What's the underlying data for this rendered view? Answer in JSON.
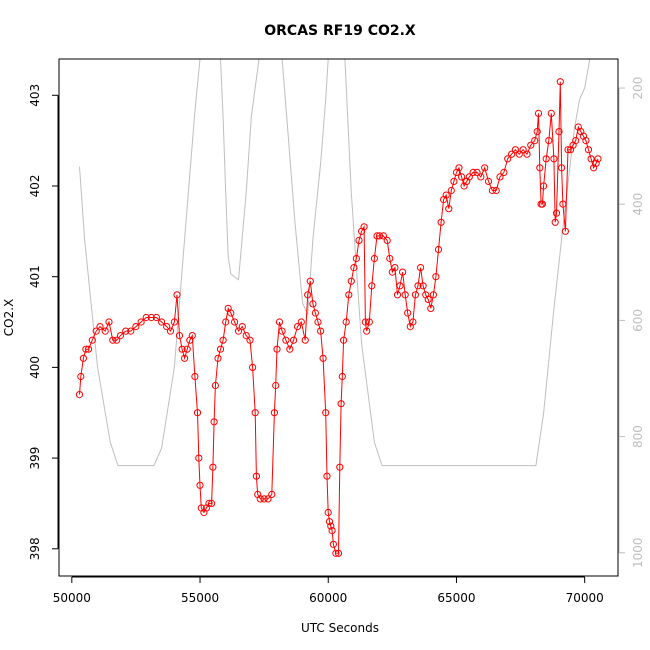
{
  "chart_data": {
    "type": "scatter",
    "title": "ORCAS RF19 CO2.X",
    "xlabel": "UTC Seconds",
    "ylabel": "CO2.X",
    "xlim": [
      49500,
      71300
    ],
    "ylim": [
      397.7,
      403.4
    ],
    "right_axis_lim": [
      1040,
      150
    ],
    "right_axis_reversed": true,
    "x_ticks": [
      50000,
      55000,
      60000,
      65000,
      70000
    ],
    "y_ticks": [
      398,
      399,
      400,
      401,
      402,
      403
    ],
    "right_ticks": [
      200,
      400,
      600,
      800,
      1000
    ],
    "grid": false,
    "colors": {
      "series": "#ff0000",
      "secondary": "#bebebe",
      "axis": "#000000"
    },
    "series": [
      {
        "marker": "open-circle",
        "color": "#ff0000",
        "points": [
          [
            50300,
            399.7
          ],
          [
            50350,
            399.9
          ],
          [
            50450,
            400.1
          ],
          [
            50550,
            400.2
          ],
          [
            50650,
            400.2
          ],
          [
            50800,
            400.3
          ],
          [
            50950,
            400.4
          ],
          [
            51100,
            400.45
          ],
          [
            51300,
            400.4
          ],
          [
            51450,
            400.5
          ],
          [
            51600,
            400.3
          ],
          [
            51750,
            400.3
          ],
          [
            51900,
            400.35
          ],
          [
            52100,
            400.4
          ],
          [
            52300,
            400.4
          ],
          [
            52500,
            400.45
          ],
          [
            52700,
            400.5
          ],
          [
            52900,
            400.55
          ],
          [
            53100,
            400.55
          ],
          [
            53300,
            400.55
          ],
          [
            53500,
            400.5
          ],
          [
            53700,
            400.45
          ],
          [
            53850,
            400.4
          ],
          [
            54000,
            400.5
          ],
          [
            54100,
            400.8
          ],
          [
            54200,
            400.35
          ],
          [
            54300,
            400.2
          ],
          [
            54400,
            400.1
          ],
          [
            54500,
            400.2
          ],
          [
            54600,
            400.3
          ],
          [
            54700,
            400.35
          ],
          [
            54800,
            399.9
          ],
          [
            54900,
            399.5
          ],
          [
            54950,
            399.0
          ],
          [
            55000,
            398.7
          ],
          [
            55050,
            398.45
          ],
          [
            55150,
            398.4
          ],
          [
            55250,
            398.45
          ],
          [
            55350,
            398.5
          ],
          [
            55450,
            398.5
          ],
          [
            55500,
            398.9
          ],
          [
            55550,
            399.4
          ],
          [
            55600,
            399.8
          ],
          [
            55700,
            400.1
          ],
          [
            55800,
            400.2
          ],
          [
            55900,
            400.3
          ],
          [
            56000,
            400.5
          ],
          [
            56100,
            400.65
          ],
          [
            56200,
            400.6
          ],
          [
            56350,
            400.5
          ],
          [
            56500,
            400.4
          ],
          [
            56650,
            400.45
          ],
          [
            56800,
            400.35
          ],
          [
            56950,
            400.3
          ],
          [
            57050,
            400.0
          ],
          [
            57150,
            399.5
          ],
          [
            57200,
            398.8
          ],
          [
            57250,
            398.6
          ],
          [
            57350,
            398.55
          ],
          [
            57500,
            398.55
          ],
          [
            57650,
            398.55
          ],
          [
            57800,
            398.6
          ],
          [
            57900,
            399.5
          ],
          [
            57950,
            399.8
          ],
          [
            58000,
            400.2
          ],
          [
            58100,
            400.5
          ],
          [
            58200,
            400.4
          ],
          [
            58350,
            400.3
          ],
          [
            58500,
            400.2
          ],
          [
            58650,
            400.3
          ],
          [
            58800,
            400.45
          ],
          [
            58950,
            400.5
          ],
          [
            59100,
            400.3
          ],
          [
            59200,
            400.8
          ],
          [
            59300,
            400.95
          ],
          [
            59400,
            400.7
          ],
          [
            59500,
            400.6
          ],
          [
            59600,
            400.5
          ],
          [
            59700,
            400.4
          ],
          [
            59800,
            400.1
          ],
          [
            59900,
            399.5
          ],
          [
            59950,
            398.8
          ],
          [
            60000,
            398.4
          ],
          [
            60050,
            398.3
          ],
          [
            60100,
            398.25
          ],
          [
            60150,
            398.2
          ],
          [
            60200,
            398.05
          ],
          [
            60300,
            397.95
          ],
          [
            60400,
            397.95
          ],
          [
            60450,
            398.9
          ],
          [
            60500,
            399.6
          ],
          [
            60550,
            399.9
          ],
          [
            60600,
            400.3
          ],
          [
            60700,
            400.5
          ],
          [
            60800,
            400.8
          ],
          [
            60900,
            400.95
          ],
          [
            61000,
            401.1
          ],
          [
            61100,
            401.2
          ],
          [
            61200,
            401.4
          ],
          [
            61300,
            401.5
          ],
          [
            61400,
            401.55
          ],
          [
            61450,
            400.5
          ],
          [
            61500,
            400.4
          ],
          [
            61600,
            400.5
          ],
          [
            61700,
            400.9
          ],
          [
            61800,
            401.2
          ],
          [
            61900,
            401.45
          ],
          [
            62000,
            401.45
          ],
          [
            62150,
            401.45
          ],
          [
            62300,
            401.4
          ],
          [
            62400,
            401.2
          ],
          [
            62500,
            401.05
          ],
          [
            62600,
            401.1
          ],
          [
            62700,
            400.8
          ],
          [
            62800,
            400.9
          ],
          [
            62900,
            401.05
          ],
          [
            63000,
            400.8
          ],
          [
            63100,
            400.6
          ],
          [
            63200,
            400.45
          ],
          [
            63300,
            400.5
          ],
          [
            63400,
            400.8
          ],
          [
            63500,
            400.9
          ],
          [
            63600,
            401.1
          ],
          [
            63700,
            400.9
          ],
          [
            63800,
            400.8
          ],
          [
            63900,
            400.75
          ],
          [
            64000,
            400.65
          ],
          [
            64100,
            400.8
          ],
          [
            64200,
            401.0
          ],
          [
            64300,
            401.3
          ],
          [
            64400,
            401.6
          ],
          [
            64500,
            401.85
          ],
          [
            64600,
            401.9
          ],
          [
            64700,
            401.75
          ],
          [
            64800,
            401.95
          ],
          [
            64900,
            402.05
          ],
          [
            65000,
            402.15
          ],
          [
            65100,
            402.2
          ],
          [
            65200,
            402.1
          ],
          [
            65300,
            402.0
          ],
          [
            65400,
            402.05
          ],
          [
            65500,
            402.1
          ],
          [
            65650,
            402.15
          ],
          [
            65800,
            402.15
          ],
          [
            65950,
            402.1
          ],
          [
            66100,
            402.2
          ],
          [
            66250,
            402.05
          ],
          [
            66400,
            401.95
          ],
          [
            66550,
            401.95
          ],
          [
            66700,
            402.1
          ],
          [
            66850,
            402.15
          ],
          [
            67000,
            402.3
          ],
          [
            67150,
            402.35
          ],
          [
            67300,
            402.4
          ],
          [
            67450,
            402.35
          ],
          [
            67600,
            402.4
          ],
          [
            67750,
            402.35
          ],
          [
            67900,
            402.45
          ],
          [
            68050,
            402.5
          ],
          [
            68150,
            402.6
          ],
          [
            68200,
            402.8
          ],
          [
            68250,
            402.2
          ],
          [
            68300,
            401.8
          ],
          [
            68350,
            401.8
          ],
          [
            68400,
            402.0
          ],
          [
            68500,
            402.3
          ],
          [
            68600,
            402.5
          ],
          [
            68700,
            402.8
          ],
          [
            68800,
            402.3
          ],
          [
            68850,
            401.6
          ],
          [
            68900,
            401.7
          ],
          [
            69000,
            402.6
          ],
          [
            69050,
            403.15
          ],
          [
            69100,
            402.2
          ],
          [
            69150,
            401.8
          ],
          [
            69250,
            401.5
          ],
          [
            69350,
            402.4
          ],
          [
            69450,
            402.4
          ],
          [
            69550,
            402.45
          ],
          [
            69650,
            402.5
          ],
          [
            69750,
            402.65
          ],
          [
            69850,
            402.6
          ],
          [
            69950,
            402.55
          ],
          [
            70050,
            402.5
          ],
          [
            70150,
            402.4
          ],
          [
            70250,
            402.3
          ],
          [
            70350,
            402.2
          ],
          [
            70450,
            402.25
          ],
          [
            70520,
            402.3
          ]
        ]
      },
      {
        "role": "secondary-axis-line",
        "color": "#bebebe",
        "points": [
          [
            50300,
            335
          ],
          [
            50500,
            460
          ],
          [
            51000,
            680
          ],
          [
            51500,
            810
          ],
          [
            51800,
            850
          ],
          [
            53200,
            850
          ],
          [
            53500,
            820
          ],
          [
            54000,
            680
          ],
          [
            54400,
            460
          ],
          [
            54800,
            240
          ],
          [
            55000,
            150
          ],
          [
            55800,
            150
          ],
          [
            55900,
            250
          ],
          [
            56000,
            380
          ],
          [
            56100,
            490
          ],
          [
            56200,
            520
          ],
          [
            56500,
            530
          ],
          [
            56800,
            380
          ],
          [
            57000,
            250
          ],
          [
            57300,
            150
          ],
          [
            58200,
            150
          ],
          [
            58400,
            260
          ],
          [
            58700,
            430
          ],
          [
            59000,
            570
          ],
          [
            59200,
            590
          ],
          [
            59400,
            460
          ],
          [
            59700,
            330
          ],
          [
            59900,
            220
          ],
          [
            60000,
            150
          ],
          [
            60650,
            150
          ],
          [
            60900,
            380
          ],
          [
            61300,
            640
          ],
          [
            61800,
            810
          ],
          [
            62100,
            850
          ],
          [
            68100,
            850
          ],
          [
            68400,
            760
          ],
          [
            68800,
            580
          ],
          [
            69200,
            420
          ],
          [
            69600,
            270
          ],
          [
            69800,
            220
          ],
          [
            70000,
            200
          ],
          [
            70200,
            150
          ]
        ]
      }
    ]
  }
}
